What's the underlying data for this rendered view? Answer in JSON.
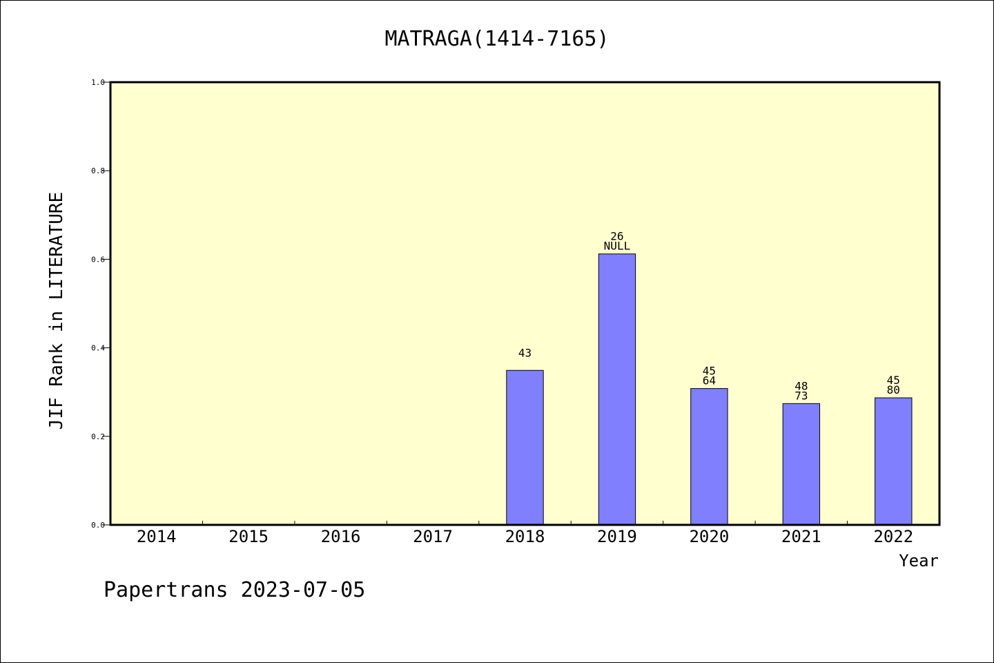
{
  "chart_data": {
    "type": "bar",
    "title": "MATRAGA(1414-7165)",
    "xlabel": "Year",
    "ylabel": "JIF Rank in LITERATURE",
    "categories": [
      "2014",
      "2015",
      "2016",
      "2017",
      "2018",
      "2019",
      "2020",
      "2021",
      "2022"
    ],
    "values": [
      null,
      null,
      null,
      null,
      0.349,
      0.612,
      0.308,
      0.274,
      0.287
    ],
    "bar_labels": [
      [
        "",
        ""
      ],
      [
        "",
        ""
      ],
      [
        "",
        ""
      ],
      [
        "",
        ""
      ],
      [
        "43",
        ""
      ],
      [
        "26",
        "NULL"
      ],
      [
        "45",
        "64"
      ],
      [
        "48",
        "73"
      ],
      [
        "45",
        "80"
      ]
    ],
    "ylim": [
      0,
      1.0
    ],
    "yticks": [
      "0.0",
      "0.2",
      "0.4",
      "0.6",
      "0.8",
      "1.0"
    ],
    "grid": false,
    "bar_color": "#8080ff",
    "plot_background": "#ffffd0"
  },
  "footer": "Papertrans 2023-07-05"
}
